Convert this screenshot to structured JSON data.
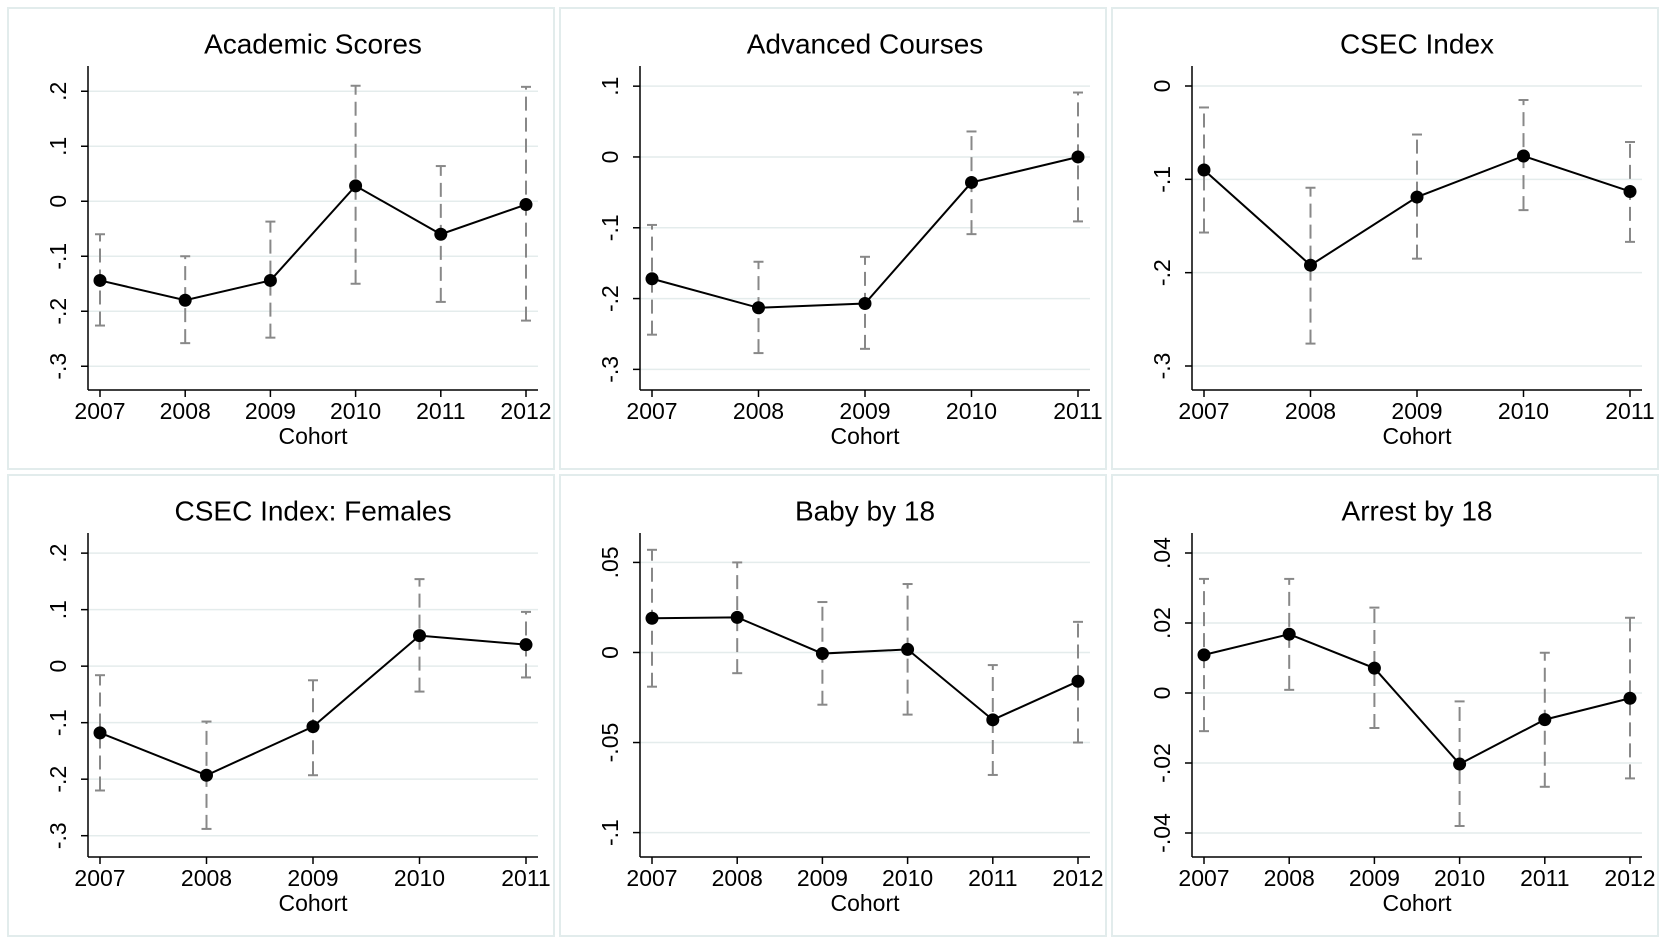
{
  "chart_data": [
    {
      "type": "line",
      "title": "Academic Scores",
      "x_label": "Cohort",
      "categories": [
        "2007",
        "2008",
        "2009",
        "2010",
        "2011",
        "2012"
      ],
      "values": [
        -0.144,
        -0.18,
        -0.144,
        0.028,
        -0.06,
        -0.006
      ],
      "ci_low": [
        -0.226,
        -0.258,
        -0.248,
        -0.15,
        -0.183,
        -0.217
      ],
      "ci_high": [
        -0.06,
        -0.1,
        -0.037,
        0.21,
        0.064,
        0.208
      ],
      "ylim": [
        -0.325,
        0.235
      ],
      "yticks": [
        {
          "value": -0.3,
          "label": "-.3"
        },
        {
          "value": -0.2,
          "label": "-.2"
        },
        {
          "value": -0.1,
          "label": "-.1"
        },
        0,
        {
          "value": 0.1,
          "label": ".1"
        },
        {
          "value": 0.2,
          "label": ".2"
        }
      ],
      "color": "#000000",
      "ci_color": "#888888",
      "grid": true
    },
    {
      "type": "line",
      "title": "Advanced Courses",
      "x_label": "Cohort",
      "categories": [
        "2007",
        "2008",
        "2009",
        "2010",
        "2011"
      ],
      "values": [
        -0.172,
        -0.213,
        -0.207,
        -0.036,
        0
      ],
      "ci_low": [
        -0.251,
        -0.277,
        -0.271,
        -0.109,
        -0.091
      ],
      "ci_high": [
        -0.096,
        -0.148,
        -0.141,
        0.036,
        0.091
      ],
      "ylim": [
        -0.315,
        0.12
      ],
      "yticks": [
        {
          "value": -0.3,
          "label": "-.3"
        },
        {
          "value": -0.2,
          "label": "-.2"
        },
        {
          "value": -0.1,
          "label": "-.1"
        },
        0,
        {
          "value": 0.1,
          "label": ".1"
        }
      ],
      "color": "#000000",
      "ci_color": "#888888",
      "grid": true
    },
    {
      "type": "line",
      "title": "CSEC Index",
      "x_label": "Cohort",
      "categories": [
        "2007",
        "2008",
        "2009",
        "2010",
        "2011"
      ],
      "values": [
        -0.09,
        -0.192,
        -0.119,
        -0.075,
        -0.113
      ],
      "ci_low": [
        -0.157,
        -0.276,
        -0.185,
        -0.133,
        -0.167
      ],
      "ci_high": [
        -0.023,
        -0.109,
        -0.052,
        -0.015,
        -0.06
      ],
      "ylim": [
        -0.315,
        0.015
      ],
      "yticks": [
        {
          "value": -0.3,
          "label": "-.3"
        },
        {
          "value": -0.2,
          "label": "-.2"
        },
        {
          "value": -0.1,
          "label": "-.1"
        },
        0
      ],
      "color": "#000000",
      "ci_color": "#888888",
      "grid": true
    },
    {
      "type": "line",
      "title": "CSEC Index: Females",
      "x_label": "Cohort",
      "categories": [
        "2007",
        "2008",
        "2009",
        "2010",
        "2011"
      ],
      "values": [
        -0.118,
        -0.193,
        -0.107,
        0.054,
        0.038
      ],
      "ci_low": [
        -0.22,
        -0.288,
        -0.193,
        -0.045,
        -0.02
      ],
      "ci_high": [
        -0.016,
        -0.098,
        -0.025,
        0.154,
        0.096
      ],
      "ylim": [
        -0.32,
        0.225
      ],
      "yticks": [
        {
          "value": -0.3,
          "label": "-.3"
        },
        {
          "value": -0.2,
          "label": "-.2"
        },
        {
          "value": -0.1,
          "label": "-.1"
        },
        0,
        {
          "value": 0.1,
          "label": ".1"
        },
        {
          "value": 0.2,
          "label": ".2"
        }
      ],
      "color": "#000000",
      "ci_color": "#888888",
      "grid": true
    },
    {
      "type": "line",
      "title": "Baby by 18",
      "x_label": "Cohort",
      "categories": [
        "2007",
        "2008",
        "2009",
        "2010",
        "2011",
        "2012"
      ],
      "values": [
        0.019,
        0.0195,
        -0.0006,
        0.0017,
        -0.0374,
        -0.016
      ],
      "ci_low": [
        -0.019,
        -0.0115,
        -0.029,
        -0.0345,
        -0.068,
        -0.05
      ],
      "ci_high": [
        0.057,
        0.05,
        0.028,
        0.038,
        -0.007,
        0.017
      ],
      "ylim": [
        -0.108,
        0.063
      ],
      "yticks": [
        {
          "value": -0.1,
          "label": "-.1"
        },
        {
          "value": -0.05,
          "label": "-.05"
        },
        0,
        {
          "value": 0.05,
          "label": ".05"
        }
      ],
      "color": "#000000",
      "ci_color": "#888888",
      "grid": true
    },
    {
      "type": "line",
      "title": "Arrest by 18",
      "x_label": "Cohort",
      "categories": [
        "2007",
        "2008",
        "2009",
        "2010",
        "2011",
        "2012"
      ],
      "values": [
        0.0109,
        0.0168,
        0.0071,
        -0.0203,
        -0.0076,
        -0.0015
      ],
      "ci_low": [
        -0.0109,
        0.0009,
        -0.01,
        -0.038,
        -0.0268,
        -0.0244
      ],
      "ci_high": [
        0.0326,
        0.0326,
        0.0244,
        -0.0024,
        0.0115,
        0.0215
      ],
      "ylim": [
        -0.044,
        0.044
      ],
      "yticks": [
        {
          "value": -0.04,
          "label": "-.04"
        },
        {
          "value": -0.02,
          "label": "-.02"
        },
        0,
        {
          "value": 0.02,
          "label": ".02"
        },
        {
          "value": 0.04,
          "label": ".04"
        }
      ],
      "color": "#000000",
      "ci_color": "#888888",
      "grid": true
    }
  ]
}
